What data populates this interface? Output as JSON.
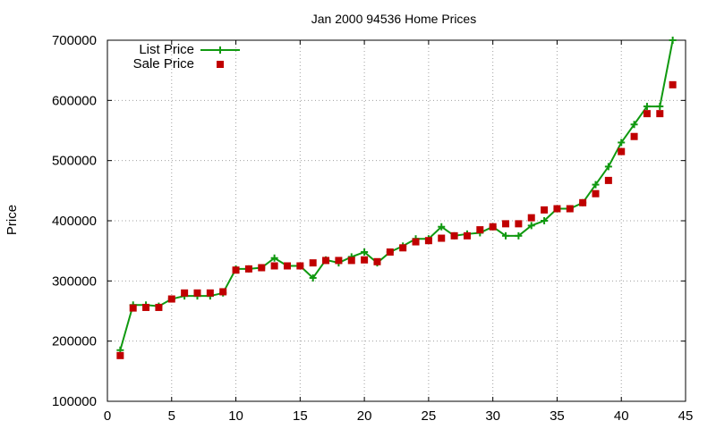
{
  "chart_data": {
    "type": "line",
    "title": "Jan 2000 94536 Home Prices",
    "xlabel": "",
    "ylabel": "Price",
    "xlim": [
      0,
      45
    ],
    "ylim": [
      100000,
      700000
    ],
    "x_ticks": [
      0,
      5,
      10,
      15,
      20,
      25,
      30,
      35,
      40,
      45
    ],
    "y_ticks": [
      100000,
      200000,
      300000,
      400000,
      500000,
      600000,
      700000
    ],
    "grid": true,
    "legend_position": "top-left",
    "series": [
      {
        "name": "List Price",
        "type": "line",
        "marker": "plus",
        "color": "#109910",
        "x": [
          1,
          2,
          3,
          4,
          5,
          6,
          7,
          8,
          9,
          10,
          11,
          12,
          13,
          14,
          15,
          16,
          17,
          18,
          19,
          20,
          21,
          22,
          23,
          24,
          25,
          26,
          27,
          28,
          29,
          30,
          31,
          32,
          33,
          34,
          35,
          36,
          37,
          38,
          39,
          40,
          41,
          42,
          43,
          44
        ],
        "values": [
          185000,
          260000,
          260000,
          258000,
          270000,
          275000,
          275000,
          275000,
          280000,
          320000,
          320000,
          322000,
          338000,
          325000,
          325000,
          305000,
          335000,
          330000,
          340000,
          348000,
          330000,
          348000,
          358000,
          370000,
          370000,
          390000,
          375000,
          378000,
          380000,
          390000,
          375000,
          375000,
          392000,
          400000,
          420000,
          420000,
          430000,
          460000,
          490000,
          530000,
          560000,
          590000,
          590000,
          700000
        ]
      },
      {
        "name": "Sale Price",
        "type": "scatter",
        "marker": "square",
        "color": "#c00000",
        "x": [
          1,
          2,
          3,
          4,
          5,
          6,
          7,
          8,
          9,
          10,
          11,
          12,
          13,
          14,
          15,
          16,
          17,
          18,
          19,
          20,
          21,
          22,
          23,
          24,
          25,
          26,
          27,
          28,
          29,
          30,
          31,
          32,
          33,
          34,
          35,
          36,
          37,
          38,
          39,
          40,
          41,
          42,
          43,
          44
        ],
        "values": [
          176000,
          255000,
          256000,
          256000,
          270000,
          280000,
          280000,
          280000,
          282000,
          318000,
          320000,
          322000,
          325000,
          325000,
          325000,
          330000,
          334000,
          334000,
          334000,
          335000,
          332000,
          348000,
          355000,
          365000,
          367000,
          371000,
          375000,
          375000,
          385000,
          390000,
          395000,
          395000,
          405000,
          418000,
          420000,
          420000,
          430000,
          445000,
          467000,
          515000,
          540000,
          578000,
          578000,
          626000
        ]
      }
    ]
  }
}
